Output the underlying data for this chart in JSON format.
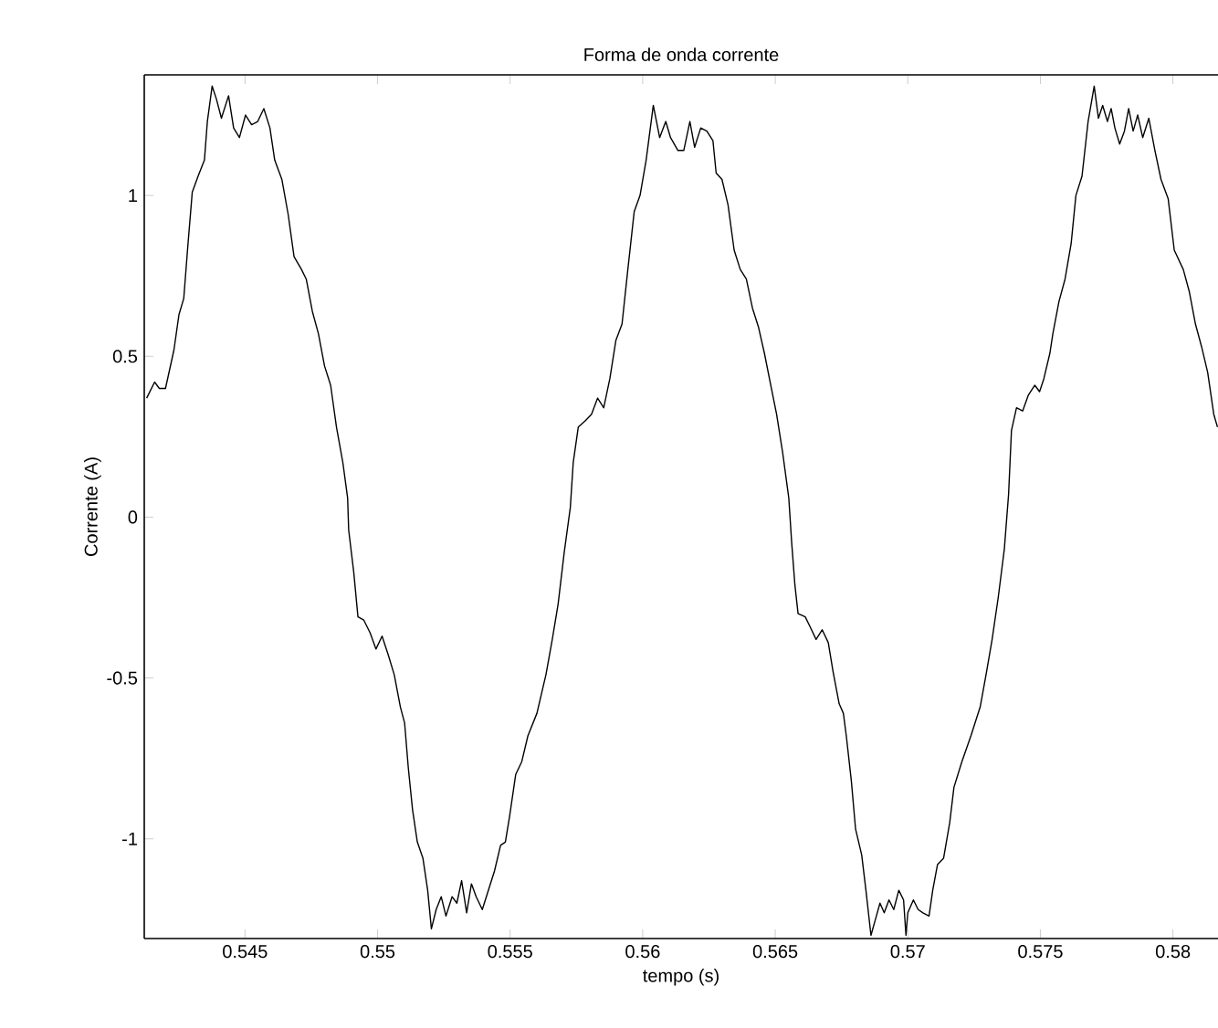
{
  "chart_data": {
    "type": "line",
    "title": "Forma de onda corrente",
    "xlabel": "tempo (s)",
    "ylabel": "Corrente (A)",
    "xlim": [
      0.5412,
      0.5817
    ],
    "ylim": [
      -1.31,
      1.375
    ],
    "xticks": [
      0.545,
      0.55,
      0.555,
      0.56,
      0.565,
      0.57,
      0.575,
      0.58
    ],
    "yticks": [
      -1,
      -0.5,
      0,
      0.5,
      1
    ],
    "grid": false,
    "marker": "none",
    "line_style": "solid",
    "series": [
      {
        "color": "#000000",
        "x": [
          0.54129,
          0.54159,
          0.54177,
          0.542,
          0.54232,
          0.54251,
          0.54269,
          0.54285,
          0.54301,
          0.54323,
          0.54347,
          0.54358,
          0.54376,
          0.54392,
          0.54411,
          0.54438,
          0.54457,
          0.54479,
          0.54502,
          0.54525,
          0.54548,
          0.54571,
          0.54594,
          0.54612,
          0.54639,
          0.54663,
          0.54685,
          0.54713,
          0.54731,
          0.54754,
          0.54777,
          0.548,
          0.54823,
          0.54845,
          0.54869,
          0.54887,
          0.54891,
          0.5491,
          0.54926,
          0.54948,
          0.54972,
          0.54994,
          0.55017,
          0.55041,
          0.55063,
          0.55086,
          0.55102,
          0.55116,
          0.55132,
          0.5515,
          0.55171,
          0.55189,
          0.55203,
          0.55221,
          0.5524,
          0.55258,
          0.55281,
          0.55299,
          0.55317,
          0.55336,
          0.55354,
          0.55372,
          0.55395,
          0.55418,
          0.55441,
          0.55464,
          0.55482,
          0.55498,
          0.55521,
          0.55544,
          0.55567,
          0.55601,
          0.55635,
          0.55659,
          0.55681,
          0.55704,
          0.55727,
          0.55738,
          0.55757,
          0.55784,
          0.55807,
          0.5583,
          0.55853,
          0.55876,
          0.55899,
          0.55922,
          0.55944,
          0.55968,
          0.5599,
          0.56013,
          0.5604,
          0.56064,
          0.56087,
          0.56105,
          0.56133,
          0.56155,
          0.56178,
          0.56196,
          0.56219,
          0.56242,
          0.56265,
          0.56277,
          0.56299,
          0.56322,
          0.56345,
          0.56368,
          0.56391,
          0.56414,
          0.56437,
          0.56459,
          0.56483,
          0.56505,
          0.56528,
          0.56551,
          0.56562,
          0.56574,
          0.56586,
          0.56613,
          0.56631,
          0.56654,
          0.56677,
          0.567,
          0.56718,
          0.56741,
          0.56757,
          0.56768,
          0.56787,
          0.56803,
          0.56826,
          0.56842,
          0.56861,
          0.56878,
          0.56895,
          0.56911,
          0.56929,
          0.56947,
          0.56966,
          0.56984,
          0.56993,
          0.57,
          0.57021,
          0.57039,
          0.57057,
          0.5708,
          0.57094,
          0.57112,
          0.57135,
          0.57158,
          0.57174,
          0.57204,
          0.57238,
          0.57273,
          0.57295,
          0.57318,
          0.57341,
          0.57364,
          0.5738,
          0.57391,
          0.5741,
          0.57433,
          0.57455,
          0.57479,
          0.57497,
          0.57513,
          0.57536,
          0.57547,
          0.5757,
          0.57593,
          0.57616,
          0.57634,
          0.57657,
          0.5768,
          0.57703,
          0.57719,
          0.57735,
          0.57753,
          0.57767,
          0.57781,
          0.57799,
          0.57817,
          0.57833,
          0.5785,
          0.57867,
          0.57886,
          0.57909,
          0.57932,
          0.57955,
          0.57982,
          0.58005,
          0.58039,
          0.58062,
          0.58085,
          0.58108,
          0.58131,
          0.58154,
          0.58168
        ],
        "values": [
          0.37,
          0.42,
          0.4,
          0.4,
          0.52,
          0.63,
          0.68,
          0.85,
          1.01,
          1.06,
          1.11,
          1.23,
          1.34,
          1.3,
          1.24,
          1.31,
          1.21,
          1.18,
          1.25,
          1.22,
          1.23,
          1.27,
          1.21,
          1.11,
          1.05,
          0.94,
          0.81,
          0.77,
          0.74,
          0.64,
          0.57,
          0.47,
          0.41,
          0.28,
          0.17,
          0.06,
          -0.04,
          -0.17,
          -0.31,
          -0.32,
          -0.36,
          -0.41,
          -0.37,
          -0.43,
          -0.49,
          -0.59,
          -0.64,
          -0.78,
          -0.91,
          -1.01,
          -1.06,
          -1.16,
          -1.28,
          -1.22,
          -1.18,
          -1.24,
          -1.18,
          -1.2,
          -1.13,
          -1.23,
          -1.14,
          -1.18,
          -1.22,
          -1.16,
          -1.1,
          -1.02,
          -1.01,
          -0.93,
          -0.8,
          -0.76,
          -0.68,
          -0.61,
          -0.49,
          -0.38,
          -0.27,
          -0.11,
          0.03,
          0.17,
          0.28,
          0.3,
          0.32,
          0.37,
          0.34,
          0.43,
          0.55,
          0.6,
          0.77,
          0.95,
          1.0,
          1.11,
          1.28,
          1.18,
          1.23,
          1.18,
          1.14,
          1.14,
          1.23,
          1.15,
          1.21,
          1.2,
          1.17,
          1.07,
          1.05,
          0.97,
          0.83,
          0.77,
          0.74,
          0.65,
          0.59,
          0.51,
          0.41,
          0.32,
          0.2,
          0.06,
          -0.08,
          -0.21,
          -0.3,
          -0.31,
          -0.34,
          -0.38,
          -0.35,
          -0.39,
          -0.48,
          -0.58,
          -0.61,
          -0.68,
          -0.82,
          -0.97,
          -1.05,
          -1.16,
          -1.3,
          -1.25,
          -1.2,
          -1.23,
          -1.19,
          -1.22,
          -1.16,
          -1.19,
          -1.3,
          -1.23,
          -1.19,
          -1.22,
          -1.23,
          -1.24,
          -1.16,
          -1.08,
          -1.06,
          -0.95,
          -0.84,
          -0.76,
          -0.68,
          -0.59,
          -0.49,
          -0.38,
          -0.25,
          -0.1,
          0.07,
          0.27,
          0.34,
          0.33,
          0.38,
          0.41,
          0.39,
          0.43,
          0.51,
          0.57,
          0.67,
          0.74,
          0.85,
          1.0,
          1.06,
          1.23,
          1.34,
          1.24,
          1.28,
          1.23,
          1.27,
          1.21,
          1.16,
          1.2,
          1.27,
          1.2,
          1.25,
          1.18,
          1.24,
          1.14,
          1.05,
          0.99,
          0.83,
          0.77,
          0.7,
          0.6,
          0.53,
          0.45,
          0.32,
          0.28
        ]
      }
    ]
  }
}
